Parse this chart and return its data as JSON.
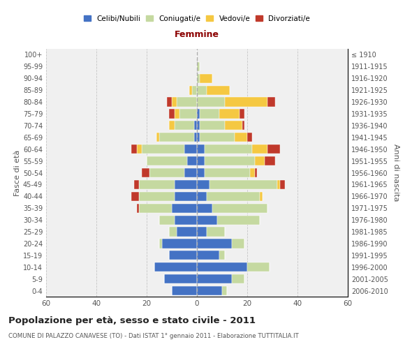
{
  "age_groups": [
    "0-4",
    "5-9",
    "10-14",
    "15-19",
    "20-24",
    "25-29",
    "30-34",
    "35-39",
    "40-44",
    "45-49",
    "50-54",
    "55-59",
    "60-64",
    "65-69",
    "70-74",
    "75-79",
    "80-84",
    "85-89",
    "90-94",
    "95-99",
    "100+"
  ],
  "birth_years": [
    "2006-2010",
    "2001-2005",
    "1996-2000",
    "1991-1995",
    "1986-1990",
    "1981-1985",
    "1976-1980",
    "1971-1975",
    "1966-1970",
    "1961-1965",
    "1956-1960",
    "1951-1955",
    "1946-1950",
    "1941-1945",
    "1936-1940",
    "1931-1935",
    "1926-1930",
    "1921-1925",
    "1916-1920",
    "1911-1915",
    "≤ 1910"
  ],
  "males": {
    "celibe": [
      10,
      13,
      17,
      11,
      14,
      8,
      9,
      10,
      9,
      9,
      5,
      4,
      5,
      1,
      1,
      0,
      0,
      0,
      0,
      0,
      0
    ],
    "coniugato": [
      0,
      0,
      0,
      0,
      1,
      3,
      6,
      13,
      14,
      14,
      14,
      16,
      17,
      14,
      8,
      7,
      8,
      2,
      0,
      0,
      0
    ],
    "vedovo": [
      0,
      0,
      0,
      0,
      0,
      0,
      0,
      0,
      0,
      0,
      0,
      0,
      2,
      1,
      2,
      2,
      2,
      1,
      0,
      0,
      0
    ],
    "divorziato": [
      0,
      0,
      0,
      0,
      0,
      0,
      0,
      1,
      3,
      2,
      3,
      0,
      2,
      0,
      0,
      2,
      2,
      0,
      0,
      0,
      0
    ]
  },
  "females": {
    "nubile": [
      10,
      14,
      20,
      9,
      14,
      4,
      8,
      6,
      4,
      5,
      3,
      3,
      3,
      1,
      1,
      1,
      0,
      0,
      0,
      0,
      0
    ],
    "coniugata": [
      2,
      5,
      9,
      2,
      5,
      7,
      17,
      22,
      21,
      27,
      18,
      20,
      19,
      14,
      10,
      8,
      11,
      4,
      1,
      1,
      0
    ],
    "vedova": [
      0,
      0,
      0,
      0,
      0,
      0,
      0,
      0,
      1,
      1,
      2,
      4,
      6,
      5,
      7,
      8,
      17,
      9,
      5,
      0,
      0
    ],
    "divorziata": [
      0,
      0,
      0,
      0,
      0,
      0,
      0,
      0,
      0,
      2,
      1,
      4,
      5,
      2,
      1,
      2,
      3,
      0,
      0,
      0,
      0
    ]
  },
  "colors": {
    "celibe": "#4472C4",
    "coniugato": "#c5d9a0",
    "vedovo": "#f5c842",
    "divorziato": "#c0392b"
  },
  "xlim": 60,
  "title": "Popolazione per età, sesso e stato civile - 2011",
  "subtitle": "COMUNE DI PALAZZO CANAVESE (TO) - Dati ISTAT 1° gennaio 2011 - Elaborazione TUTTITALIA.IT",
  "ylabel_left": "Fasce di età",
  "ylabel_right": "Anni di nascita",
  "xlabel_right": "Femmine",
  "background_color": "#f0f0f0",
  "grid_color": "#bbbbbb"
}
